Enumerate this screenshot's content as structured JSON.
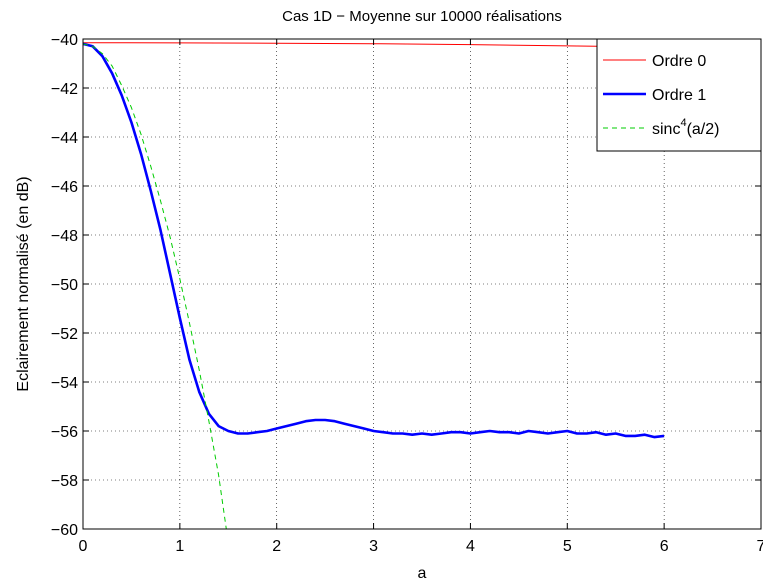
{
  "chart_data": {
    "type": "line",
    "title": "Cas 1D − Moyenne sur 10000 réalisations",
    "xlabel": "a",
    "ylabel": "Eclairement normalisé (en dB)",
    "xlim": [
      0,
      7
    ],
    "ylim": [
      -60,
      -40
    ],
    "xticks": [
      0,
      1,
      2,
      3,
      4,
      5,
      6,
      7
    ],
    "yticks": [
      -60,
      -58,
      -56,
      -54,
      -52,
      -50,
      -48,
      -46,
      -44,
      -42,
      -40
    ],
    "xtick_labels": [
      "0",
      "1",
      "2",
      "3",
      "4",
      "5",
      "6",
      "7"
    ],
    "ytick_labels": [
      "−60",
      "−58",
      "−56",
      "−54",
      "−52",
      "−50",
      "−48",
      "−46",
      "−44",
      "−42",
      "−40"
    ],
    "grid": true,
    "legend_position": "top-right",
    "series": [
      {
        "name": "Ordre 0",
        "color": "#ff0000",
        "style": "solid-thin",
        "x": [
          0,
          1,
          2,
          3,
          4,
          5,
          6
        ],
        "y": [
          -40.15,
          -40.16,
          -40.17,
          -40.19,
          -40.23,
          -40.28,
          -40.33
        ]
      },
      {
        "name": "Ordre 1",
        "color": "#0000ff",
        "style": "solid-thick",
        "x": [
          0,
          0.1,
          0.2,
          0.3,
          0.4,
          0.5,
          0.6,
          0.7,
          0.8,
          0.9,
          1.0,
          1.1,
          1.2,
          1.3,
          1.4,
          1.5,
          1.6,
          1.7,
          1.8,
          1.9,
          2.0,
          2.1,
          2.2,
          2.3,
          2.4,
          2.5,
          2.6,
          2.7,
          2.8,
          2.9,
          3.0,
          3.1,
          3.2,
          3.3,
          3.4,
          3.5,
          3.6,
          3.7,
          3.8,
          3.9,
          4.0,
          4.1,
          4.2,
          4.3,
          4.4,
          4.5,
          4.6,
          4.7,
          4.8,
          4.9,
          5.0,
          5.1,
          5.2,
          5.3,
          5.4,
          5.5,
          5.6,
          5.7,
          5.8,
          5.9,
          6.0
        ],
        "y": [
          -40.2,
          -40.3,
          -40.7,
          -41.4,
          -42.3,
          -43.4,
          -44.7,
          -46.2,
          -47.8,
          -49.6,
          -51.4,
          -53.1,
          -54.4,
          -55.3,
          -55.8,
          -56.0,
          -56.1,
          -56.1,
          -56.05,
          -56.0,
          -55.9,
          -55.8,
          -55.7,
          -55.6,
          -55.55,
          -55.55,
          -55.6,
          -55.7,
          -55.8,
          -55.9,
          -56.0,
          -56.05,
          -56.1,
          -56.1,
          -56.15,
          -56.1,
          -56.15,
          -56.1,
          -56.05,
          -56.05,
          -56.1,
          -56.05,
          -56.0,
          -56.05,
          -56.05,
          -56.1,
          -56.0,
          -56.05,
          -56.1,
          -56.05,
          -56.0,
          -56.1,
          -56.1,
          -56.05,
          -56.15,
          -56.1,
          -56.2,
          -56.2,
          -56.15,
          -56.25,
          -56.2
        ]
      },
      {
        "name": "sinc⁴(a/2)",
        "legend_base": "sinc",
        "legend_sup": "4",
        "legend_tail": "(a/2)",
        "color": "#00cc00",
        "style": "dashed",
        "x": [
          0,
          0.1,
          0.2,
          0.3,
          0.4,
          0.5,
          0.6,
          0.7,
          0.8,
          0.9,
          1.0,
          1.1,
          1.2,
          1.3,
          1.4,
          1.48
        ],
        "y": [
          -40.2,
          -40.3,
          -40.6,
          -41.1,
          -41.9,
          -42.8,
          -43.9,
          -45.2,
          -46.6,
          -48.1,
          -49.8,
          -51.6,
          -53.5,
          -55.6,
          -57.8,
          -60.0
        ]
      }
    ]
  }
}
